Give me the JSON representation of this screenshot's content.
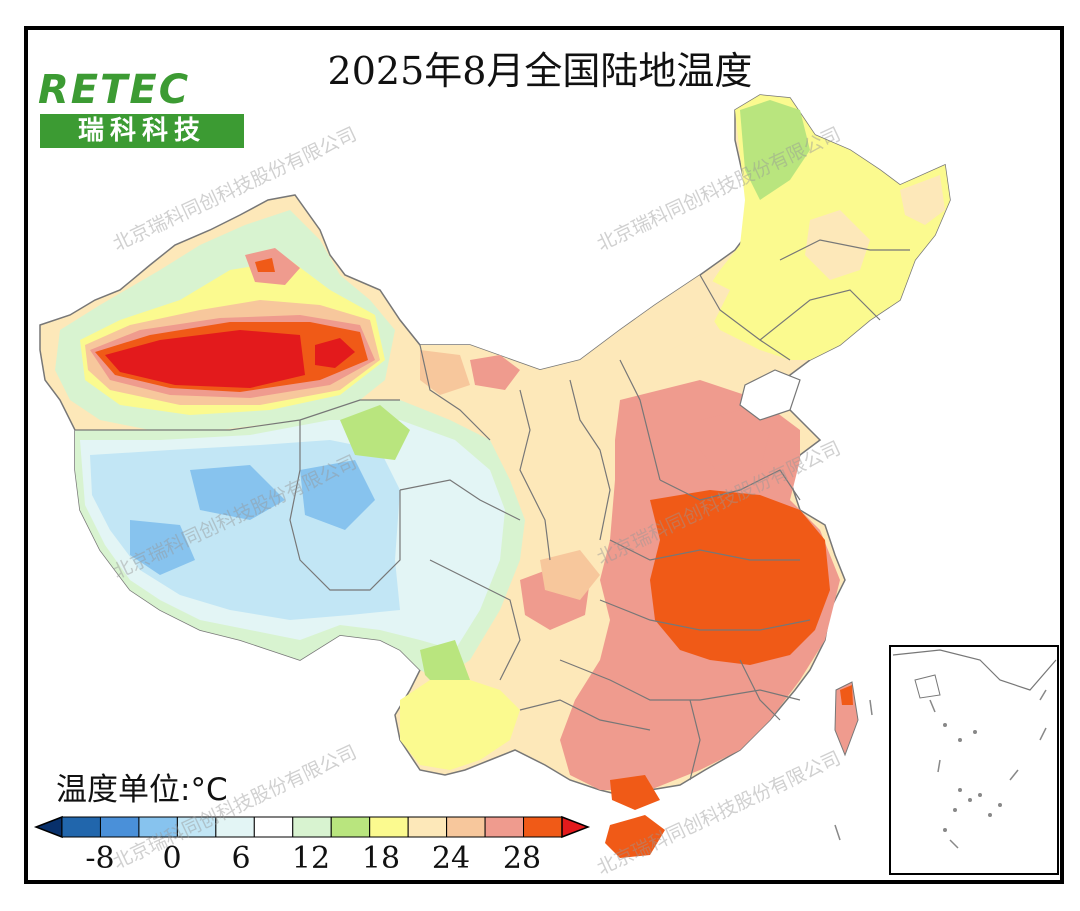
{
  "title": "2025年8月全国陆地温度",
  "logo": {
    "word": "RETEC",
    "chinese": "瑞科科技"
  },
  "legend": {
    "unit_label": "温度单位:°C",
    "ticks": [
      "-8",
      "0",
      "6",
      "12",
      "18",
      "24",
      "28"
    ],
    "colors": [
      "#08306b",
      "#2166ac",
      "#4a90d9",
      "#87c3ee",
      "#c2e6f5",
      "#e3f5f5",
      "#ffffff",
      "#d8f3d0",
      "#b9e57e",
      "#fbfa8f",
      "#fde8b9",
      "#f7c79c",
      "#ef9b8e",
      "#f05a17",
      "#e31a1c"
    ]
  },
  "watermark": "北京瑞科同创科技股份有限公司",
  "colors": {
    "hottest": "#e31a1c",
    "hot": "#f05a17",
    "warm": "#ef9b8e",
    "mild": "#fde8b9",
    "cool": "#e3f5f5",
    "cold": "#c2e6f5",
    "green": "#b9e57e"
  }
}
